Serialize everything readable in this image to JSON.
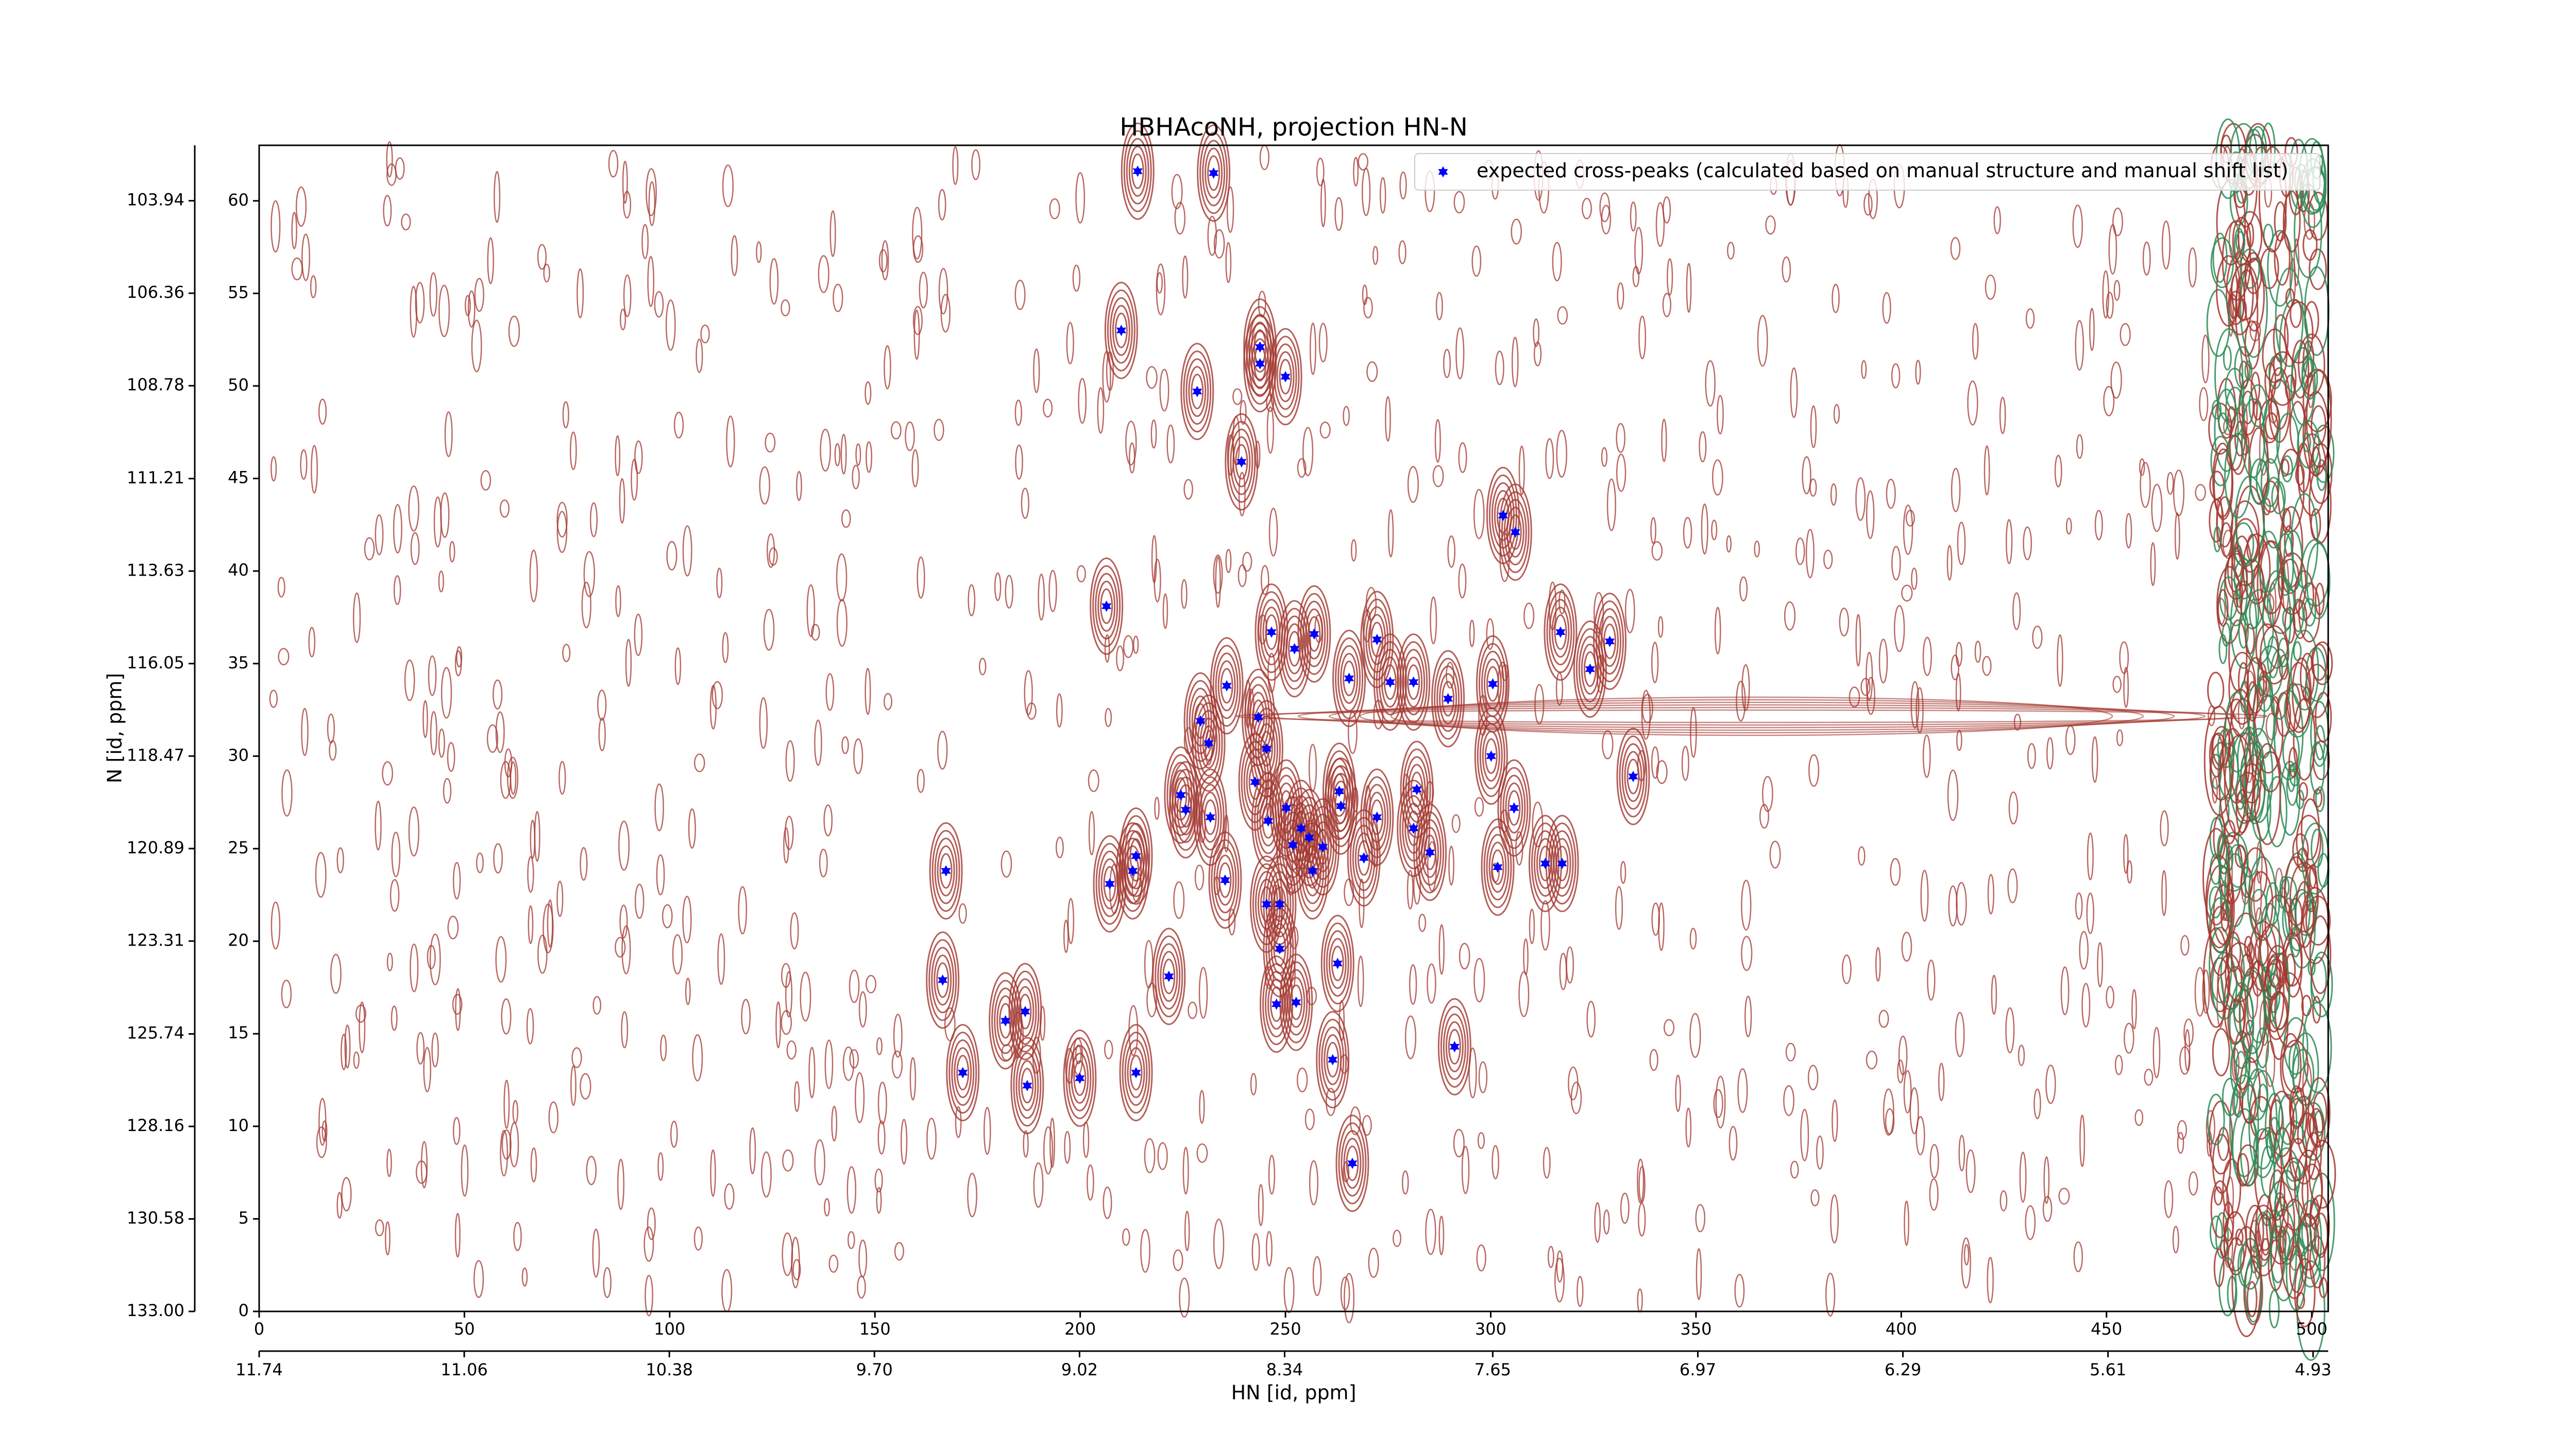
{
  "chart_data": {
    "type": "scatter",
    "title": "HBHAcoNH, projection HN-N",
    "xlabel": "HN [id, ppm]",
    "ylabel": "N [id, ppm]",
    "xlim": [
      0,
      504
    ],
    "ylim": [
      0,
      63
    ],
    "xticks": [
      0,
      50,
      100,
      150,
      200,
      250,
      300,
      350,
      400,
      450,
      500
    ],
    "yticks": [
      0,
      5,
      10,
      15,
      20,
      25,
      30,
      35,
      40,
      45,
      50,
      55,
      60
    ],
    "x2lim": [
      11.74,
      4.88
    ],
    "x2ticks": [
      11.74,
      11.06,
      10.38,
      {
        "value": 9.7,
        "label": "9.70"
      },
      9.02,
      8.34,
      7.65,
      6.97,
      6.29,
      5.61,
      4.93
    ],
    "y2lim": [
      133,
      102.49
    ],
    "y2ticks": [
      {
        "value": 133,
        "label": "133.00"
      },
      130.58,
      128.16,
      125.74,
      123.31,
      120.89,
      118.47,
      116.05,
      113.63,
      111.21,
      108.78,
      106.36,
      103.94
    ],
    "legend": "upper right",
    "contour_colors": [
      "#a3372f",
      "#2e8b57"
    ],
    "series": [
      {
        "name": "expected cross-peaks (calculated based on manual structure and manual shift list)",
        "color": "#0000ff",
        "x": [
          214,
          232.5,
          210,
          243.8,
          243.8,
          250,
          228.5,
          239.3,
          303,
          306,
          206.4,
          317,
          246.6,
          257,
          272.3,
          329,
          252.2,
          324.2,
          235.7,
          265.5,
          275.5,
          281.2,
          300.5,
          289.6,
          229.3,
          243.4,
          231.3,
          245.4,
          300.1,
          334.7,
          242.6,
          224.5,
          263.1,
          282,
          225.7,
          250.2,
          263.5,
          305.7,
          272.3,
          231.7,
          245.8,
          253.8,
          281.2,
          255.8,
          251.8,
          259.1,
          285.2,
          213.6,
          269.1,
          212.8,
          167.3,
          256.6,
          301.7,
          313.3,
          317.4,
          207.2,
          235.3,
          245.4,
          248.6,
          248.6,
          221.6,
          166.5,
          262.7,
          247.8,
          252.6,
          181.8,
          186.6,
          261.5,
          291.2,
          171.4,
          187.1,
          199.9,
          213.6,
          266.3
        ],
        "y": [
          61.6,
          61.5,
          53,
          52.1,
          51.2,
          50.5,
          49.7,
          45.9,
          43,
          42.1,
          38.1,
          36.7,
          36.7,
          36.6,
          36.3,
          36.2,
          35.8,
          34.7,
          33.8,
          34.2,
          34,
          34,
          33.9,
          33.1,
          31.9,
          32.1,
          30.7,
          30.4,
          30,
          28.9,
          28.6,
          27.9,
          28.1,
          28.2,
          27.1,
          27.2,
          27.3,
          27.2,
          26.7,
          26.7,
          26.5,
          26.1,
          26.1,
          25.6,
          25.2,
          25.1,
          24.8,
          24.6,
          24.5,
          23.8,
          23.8,
          23.8,
          24,
          24.2,
          24.2,
          23.1,
          23.3,
          22,
          22,
          19.6,
          18.1,
          17.9,
          18.8,
          16.6,
          16.7,
          15.7,
          16.2,
          13.6,
          14.3,
          12.9,
          12.2,
          12.6,
          12.9,
          8
        ]
      }
    ]
  }
}
